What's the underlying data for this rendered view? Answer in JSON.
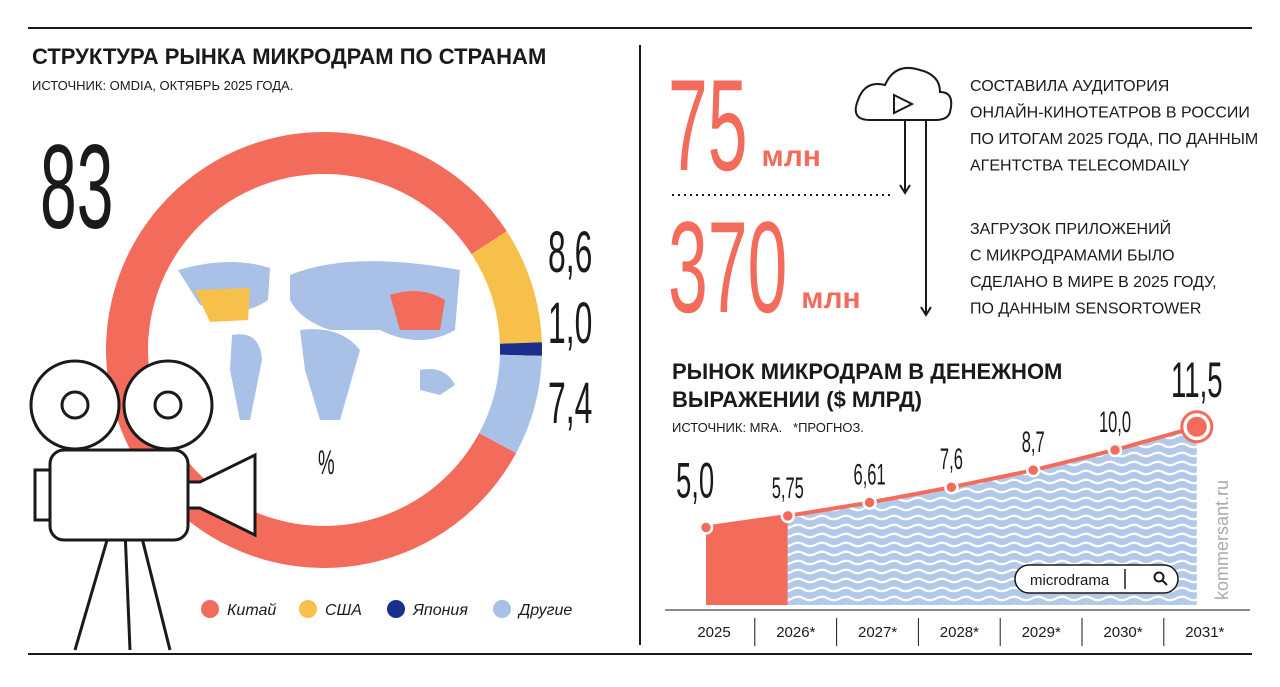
{
  "header": {
    "title": "СТРУКТУРА РЫНКА МИКРОДРАМ ПО СТРАНАМ",
    "source": "ИСТОЧНИК: OMDIA, ОКТЯБРЬ 2025 ГОДА."
  },
  "chart_data": [
    {
      "type": "donut",
      "unit": "%",
      "categories": [
        "Китай",
        "США",
        "Япония",
        "Другие"
      ],
      "values": [
        83,
        8.6,
        1.0,
        7.4
      ],
      "value_labels": [
        "83",
        "8,6",
        "1,0",
        "7,4"
      ],
      "colors": [
        "#f26b5b",
        "#f7c04a",
        "#1a2f8a",
        "#a9c1e6"
      ]
    },
    {
      "type": "line",
      "title": [
        "РЫНОК МИКРОДРАМ В ДЕНЕЖНОМ",
        "ВЫРАЖЕНИИ ($ МЛРД)"
      ],
      "subtitle": "ИСТОЧНИК: MRA.   *ПРОГНОЗ.",
      "categories": [
        "2025",
        "2026*",
        "2027*",
        "2028*",
        "2029*",
        "2030*",
        "2031*"
      ],
      "values": [
        5.0,
        5.75,
        6.61,
        7.6,
        8.7,
        10.0,
        11.5
      ],
      "value_labels": [
        "5,0",
        "5,75",
        "6,61",
        "7,6",
        "8,7",
        "10,0",
        "11,5"
      ],
      "ylim": [
        0,
        12
      ],
      "color": "#f26b5b",
      "area_color": "#b3c9ea"
    }
  ],
  "stats": [
    {
      "value": 75,
      "unit": "млн",
      "text": [
        "СОСТАВИЛА АУДИТОРИЯ",
        "ОНЛАЙН-КИНОТЕАТРОВ В РОССИИ",
        "ПО ИТОГАМ 2025 ГОДА, ПО ДАННЫМ",
        "АГЕНТСТВА TELECOMDAILY"
      ]
    },
    {
      "value": 370,
      "unit": "млн",
      "text": [
        "ЗАГРУЗОК ПРИЛОЖЕНИЙ",
        "С МИКРОДРАМАМИ БЫЛО",
        "СДЕЛАНО В МИРЕ В 2025 ГОДУ,",
        "ПО ДАННЫМ SENSORTOWER"
      ]
    }
  ],
  "search": "microdrama",
  "watermark": "kommersant.ru"
}
